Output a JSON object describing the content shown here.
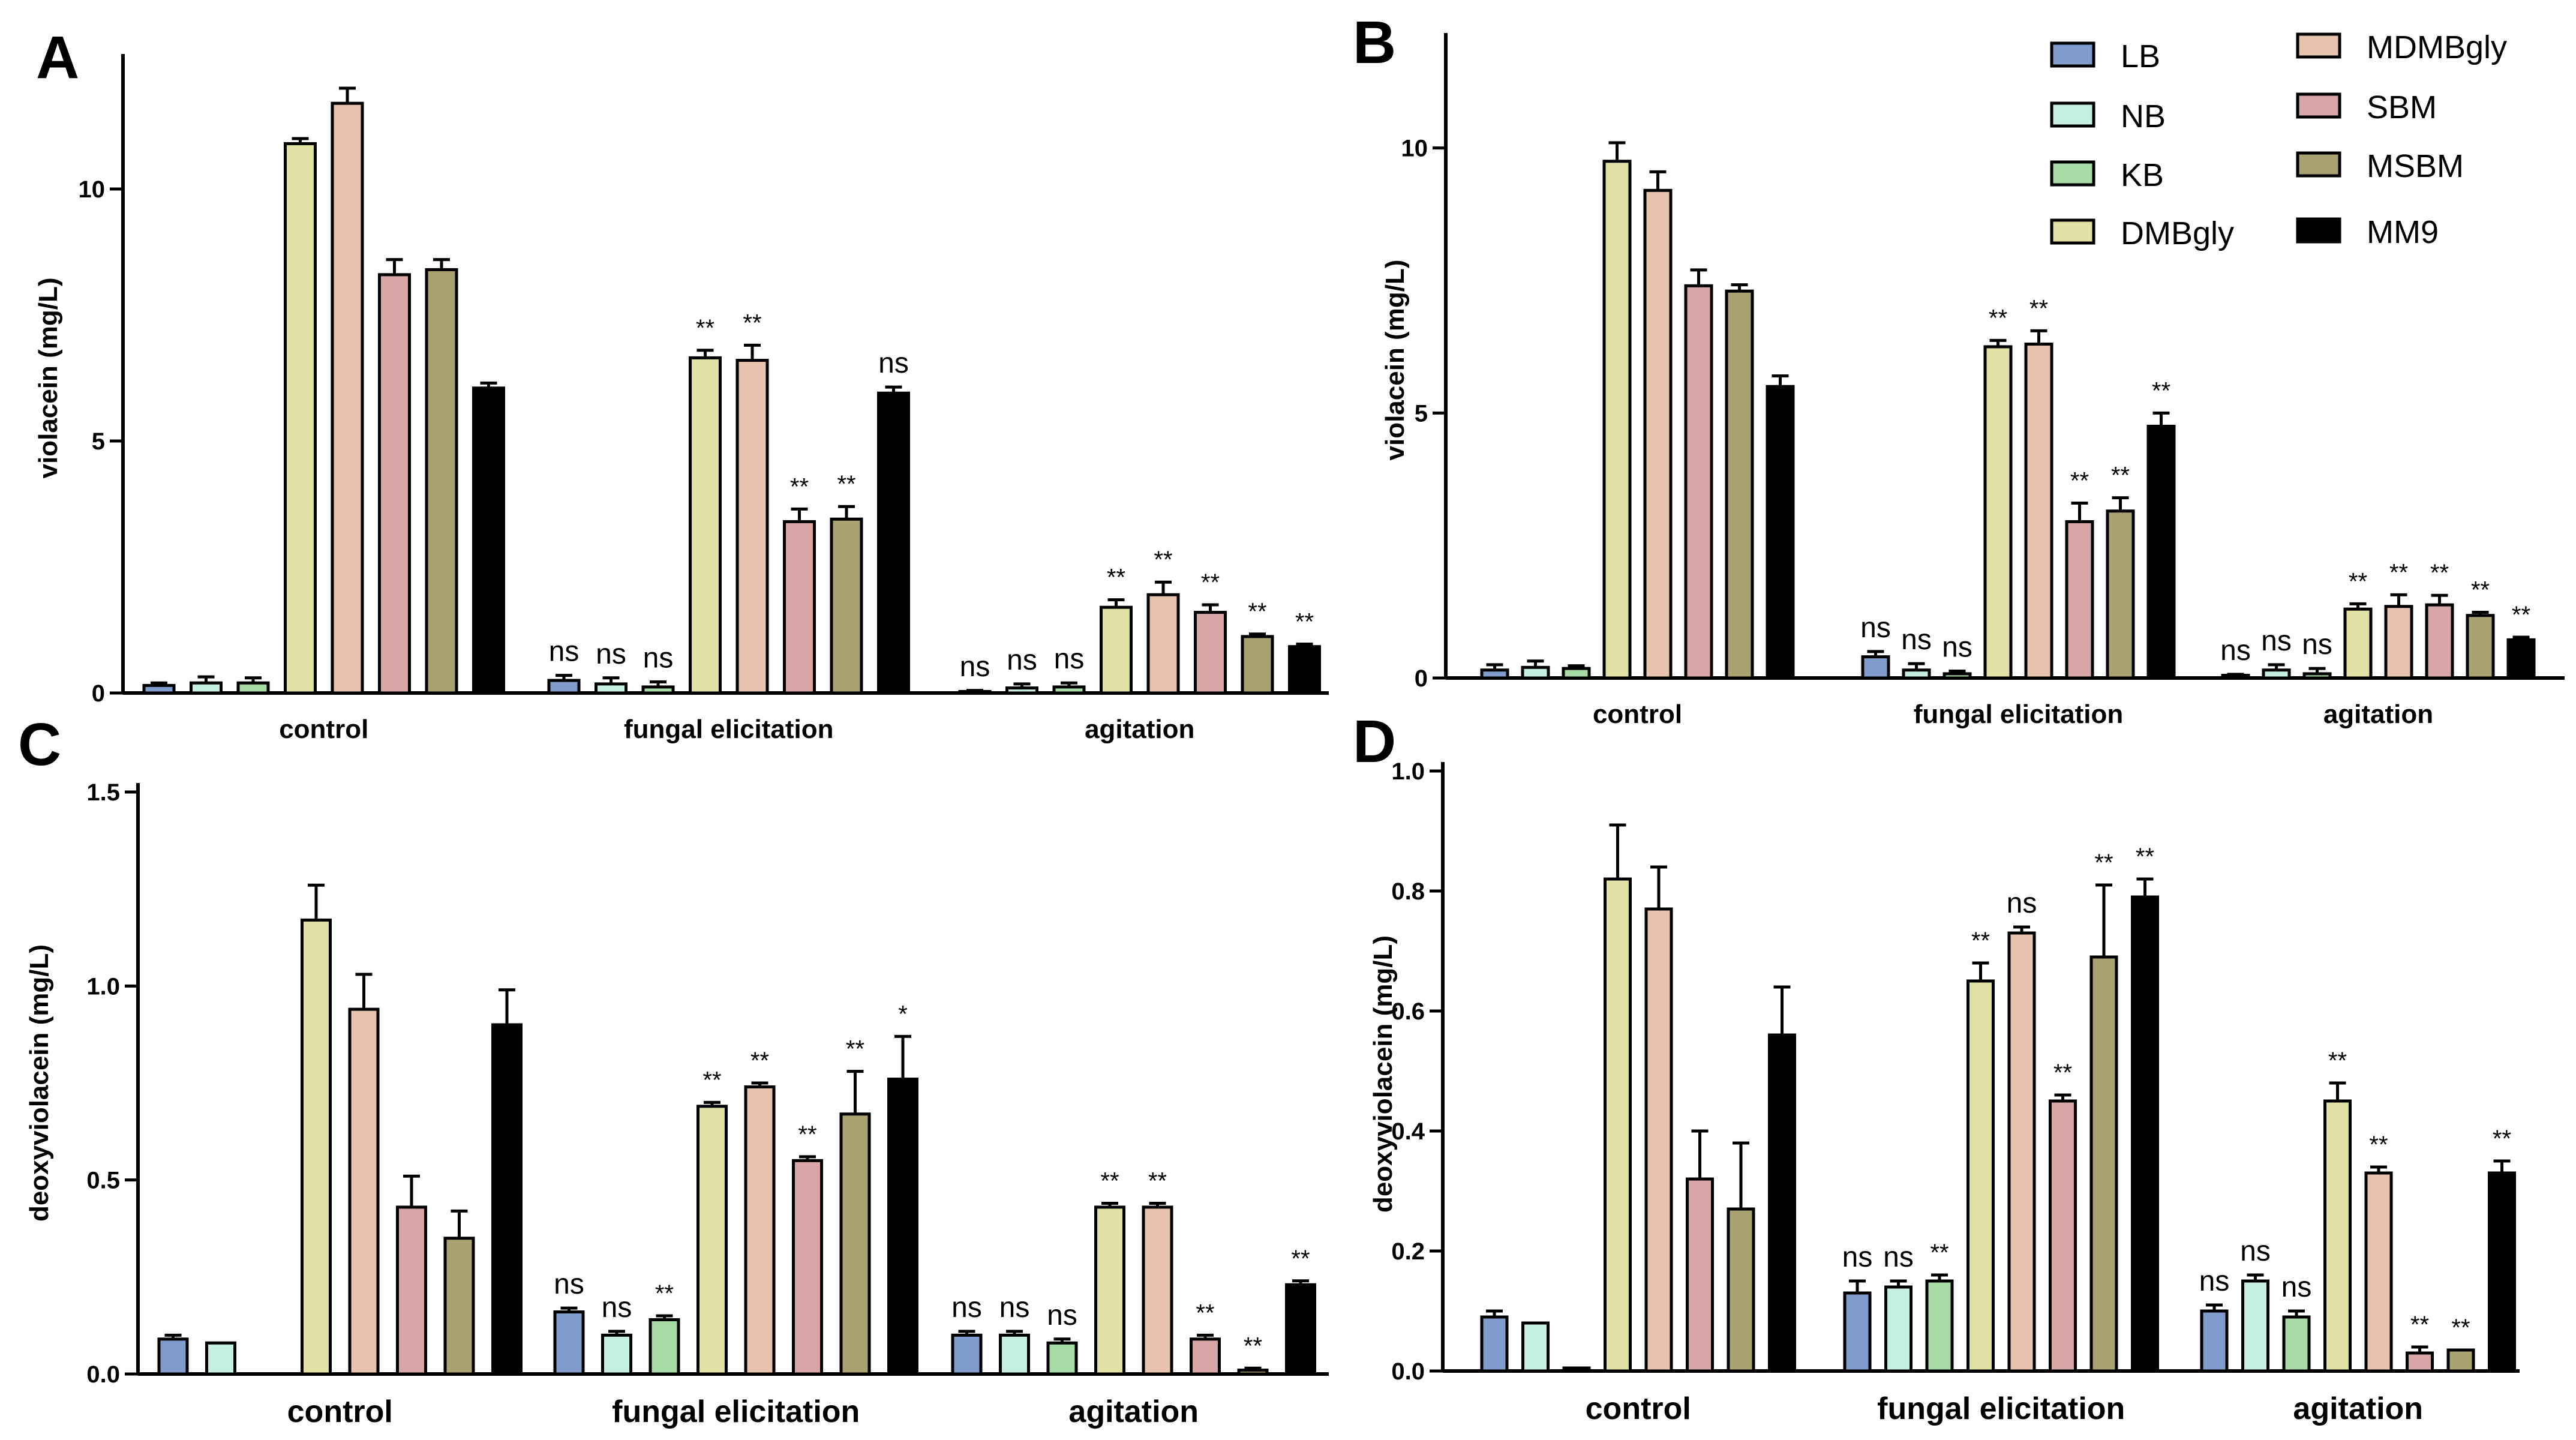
{
  "legend": [
    {
      "name": "LB",
      "color": "#7f9ccc"
    },
    {
      "name": "NB",
      "color": "#c6efe3"
    },
    {
      "name": "KB",
      "color": "#a6dba6"
    },
    {
      "name": "DMBgly",
      "color": "#e1e1a5"
    },
    {
      "name": "MDMBgly",
      "color": "#e8c3ad"
    },
    {
      "name": "SBM",
      "color": "#d9a6a6"
    },
    {
      "name": "MSBM",
      "color": "#aaa271"
    },
    {
      "name": "MM9",
      "color": "#000000"
    }
  ],
  "chart_data": [
    {
      "panel": "A",
      "type": "bar",
      "title": "",
      "ylabel": "violacein (mg/L)",
      "ylim": [
        0,
        12.5
      ],
      "yticks": [
        0,
        5,
        10
      ],
      "ytick_labels": [
        "0",
        "5",
        "10"
      ],
      "categories": [
        "control",
        "fungal elicitation",
        "agitation"
      ],
      "series": [
        {
          "name": "LB",
          "values": [
            0.15,
            0.25,
            0.03
          ],
          "errors": [
            0.05,
            0.1,
            0.02
          ],
          "annotations": [
            "",
            "ns",
            "ns"
          ]
        },
        {
          "name": "NB",
          "values": [
            0.2,
            0.18,
            0.1
          ],
          "errors": [
            0.12,
            0.12,
            0.08
          ],
          "annotations": [
            "",
            "ns",
            "ns"
          ]
        },
        {
          "name": "KB",
          "values": [
            0.2,
            0.12,
            0.12
          ],
          "errors": [
            0.1,
            0.1,
            0.08
          ],
          "annotations": [
            "",
            "ns",
            "ns"
          ]
        },
        {
          "name": "DMBgly",
          "values": [
            10.9,
            6.65,
            1.7
          ],
          "errors": [
            0.1,
            0.15,
            0.15
          ],
          "annotations": [
            "",
            "**",
            "**"
          ]
        },
        {
          "name": "MDMBgly",
          "values": [
            11.7,
            6.6,
            1.95
          ],
          "errors": [
            0.3,
            0.3,
            0.25
          ],
          "annotations": [
            "",
            "**",
            "**"
          ]
        },
        {
          "name": "SBM",
          "values": [
            8.3,
            3.4,
            1.6
          ],
          "errors": [
            0.3,
            0.25,
            0.15
          ],
          "annotations": [
            "",
            "**",
            "**"
          ]
        },
        {
          "name": "MSBM",
          "values": [
            8.4,
            3.45,
            1.12
          ],
          "errors": [
            0.2,
            0.25,
            0.05
          ],
          "annotations": [
            "",
            "**",
            "**"
          ]
        },
        {
          "name": "MM9",
          "values": [
            6.05,
            5.95,
            0.92
          ],
          "errors": [
            0.1,
            0.12,
            0.05
          ],
          "annotations": [
            "",
            "ns",
            "**"
          ]
        }
      ]
    },
    {
      "panel": "B",
      "type": "bar",
      "title": "",
      "ylabel": "violacein (mg/L)",
      "ylim": [
        0,
        12
      ],
      "yticks": [
        0,
        5,
        10
      ],
      "ytick_labels": [
        "0",
        "5",
        "10"
      ],
      "categories": [
        "control",
        "fungal elicitation",
        "agitation"
      ],
      "series": [
        {
          "name": "LB",
          "values": [
            0.15,
            0.4,
            0.05
          ],
          "errors": [
            0.1,
            0.1,
            0.02
          ],
          "annotations": [
            "",
            "ns",
            "ns"
          ]
        },
        {
          "name": "NB",
          "values": [
            0.2,
            0.15,
            0.15
          ],
          "errors": [
            0.12,
            0.12,
            0.1
          ],
          "annotations": [
            "",
            "ns",
            "ns"
          ]
        },
        {
          "name": "KB",
          "values": [
            0.18,
            0.08,
            0.08
          ],
          "errors": [
            0.05,
            0.05,
            0.1
          ],
          "annotations": [
            "",
            "ns",
            "ns"
          ]
        },
        {
          "name": "DMBgly",
          "values": [
            9.75,
            6.25,
            1.3
          ],
          "errors": [
            0.35,
            0.12,
            0.1
          ],
          "annotations": [
            "",
            "**",
            "**"
          ]
        },
        {
          "name": "MDMBgly",
          "values": [
            9.2,
            6.3,
            1.35
          ],
          "errors": [
            0.35,
            0.25,
            0.22
          ],
          "annotations": [
            "",
            "**",
            "**"
          ]
        },
        {
          "name": "SBM",
          "values": [
            7.4,
            2.95,
            1.38
          ],
          "errors": [
            0.3,
            0.35,
            0.18
          ],
          "annotations": [
            "",
            "**",
            "**"
          ]
        },
        {
          "name": "MSBM",
          "values": [
            7.3,
            3.15,
            1.18
          ],
          "errors": [
            0.12,
            0.25,
            0.06
          ],
          "annotations": [
            "",
            "**",
            "**"
          ]
        },
        {
          "name": "MM9",
          "values": [
            5.5,
            4.75,
            0.72
          ],
          "errors": [
            0.2,
            0.25,
            0.05
          ],
          "annotations": [
            "",
            "**",
            "**"
          ]
        }
      ]
    },
    {
      "panel": "C",
      "type": "bar",
      "title": "",
      "ylabel": "deoxyviolacein (mg/L)",
      "ylim": [
        0,
        1.5
      ],
      "yticks": [
        0,
        0.5,
        1.0,
        1.5
      ],
      "ytick_labels": [
        "0.0",
        "0.5",
        "1.0",
        "1.5"
      ],
      "categories": [
        "control",
        "fungal elicitation",
        "agitation"
      ],
      "series": [
        {
          "name": "LB",
          "values": [
            0.09,
            0.16,
            0.1
          ],
          "errors": [
            0.01,
            0.01,
            0.01
          ],
          "annotations": [
            "",
            "ns",
            "ns"
          ]
        },
        {
          "name": "NB",
          "values": [
            0.08,
            0.1,
            0.1
          ],
          "errors": [
            0.0,
            0.01,
            0.01
          ],
          "annotations": [
            "",
            "ns",
            "ns"
          ]
        },
        {
          "name": "KB",
          "values": [
            0.0,
            0.14,
            0.08
          ],
          "errors": [
            0.0,
            0.01,
            0.01
          ],
          "annotations": [
            "",
            "**",
            "ns"
          ]
        },
        {
          "name": "DMBgly",
          "values": [
            1.17,
            0.69,
            0.43
          ],
          "errors": [
            0.09,
            0.01,
            0.01
          ],
          "annotations": [
            "",
            "**",
            "**"
          ]
        },
        {
          "name": "MDMBgly",
          "values": [
            0.94,
            0.74,
            0.43
          ],
          "errors": [
            0.09,
            0.01,
            0.01
          ],
          "annotations": [
            "",
            "**",
            "**"
          ]
        },
        {
          "name": "SBM",
          "values": [
            0.43,
            0.55,
            0.09
          ],
          "errors": [
            0.08,
            0.01,
            0.01
          ],
          "annotations": [
            "",
            "**",
            "**"
          ]
        },
        {
          "name": "MSBM",
          "values": [
            0.35,
            0.67,
            0.01
          ],
          "errors": [
            0.07,
            0.11,
            0.005
          ],
          "annotations": [
            "",
            "**",
            "**"
          ]
        },
        {
          "name": "MM9",
          "values": [
            0.9,
            0.76,
            0.23
          ],
          "errors": [
            0.09,
            0.11,
            0.01
          ],
          "annotations": [
            "",
            "*",
            "**"
          ]
        }
      ]
    },
    {
      "panel": "D",
      "type": "bar",
      "title": "",
      "ylabel": "deoxyviolacein (mg/L)",
      "ylim": [
        0,
        1.0
      ],
      "yticks": [
        0,
        0.2,
        0.4,
        0.6,
        0.8,
        1.0
      ],
      "ytick_labels": [
        "0.0",
        "0.2",
        "0.4",
        "0.6",
        "0.8",
        "1.0"
      ],
      "categories": [
        "control",
        "fungal elicitation",
        "agitation"
      ],
      "series": [
        {
          "name": "LB",
          "values": [
            0.09,
            0.13,
            0.1
          ],
          "errors": [
            0.01,
            0.02,
            0.01
          ],
          "annotations": [
            "",
            "ns",
            "ns"
          ]
        },
        {
          "name": "NB",
          "values": [
            0.08,
            0.14,
            0.15
          ],
          "errors": [
            0.0,
            0.01,
            0.01
          ],
          "annotations": [
            "",
            "ns",
            "ns"
          ]
        },
        {
          "name": "KB",
          "values": [
            0.005,
            0.15,
            0.09
          ],
          "errors": [
            0.0,
            0.01,
            0.01
          ],
          "annotations": [
            "",
            "**",
            "ns"
          ]
        },
        {
          "name": "DMBgly",
          "values": [
            0.82,
            0.65,
            0.45
          ],
          "errors": [
            0.09,
            0.03,
            0.03
          ],
          "annotations": [
            "",
            "**",
            "**"
          ]
        },
        {
          "name": "MDMBgly",
          "values": [
            0.77,
            0.73,
            0.33
          ],
          "errors": [
            0.07,
            0.01,
            0.01
          ],
          "annotations": [
            "",
            "ns",
            "**"
          ]
        },
        {
          "name": "SBM",
          "values": [
            0.32,
            0.45,
            0.03
          ],
          "errors": [
            0.08,
            0.01,
            0.01
          ],
          "annotations": [
            "",
            "**",
            "**"
          ]
        },
        {
          "name": "MSBM",
          "values": [
            0.27,
            0.69,
            0.035
          ],
          "errors": [
            0.11,
            0.12,
            0.0
          ],
          "annotations": [
            "",
            "**",
            "**"
          ]
        },
        {
          "name": "MM9",
          "values": [
            0.56,
            0.79,
            0.33
          ],
          "errors": [
            0.08,
            0.03,
            0.02
          ],
          "annotations": [
            "",
            "**",
            "**"
          ]
        }
      ]
    }
  ]
}
